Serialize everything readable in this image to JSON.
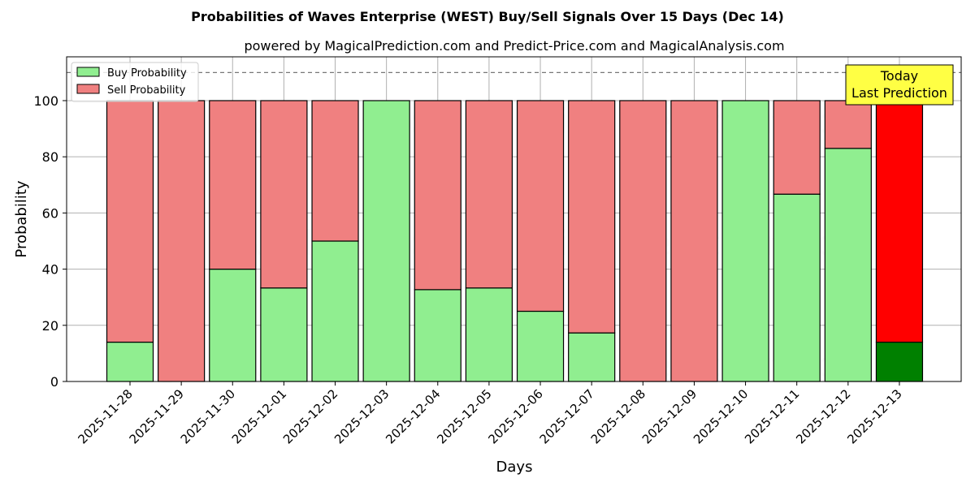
{
  "chart_data": {
    "type": "bar",
    "stacked": true,
    "title": "Probabilities of Waves Enterprise (WEST) Buy/Sell Signals Over 15 Days (Dec 14)",
    "subtitle": "powered by MagicalPrediction.com and Predict-Price.com and MagicalAnalysis.com",
    "xlabel": "Days",
    "ylabel": "Probability",
    "ylim": [
      0,
      115.6
    ],
    "yticks": [
      0,
      20,
      40,
      60,
      80,
      100
    ],
    "reference_line": 110,
    "grid": true,
    "legend_placement": "top-left",
    "categories": [
      "2025-11-28",
      "2025-11-29",
      "2025-11-30",
      "2025-12-01",
      "2025-12-02",
      "2025-12-03",
      "2025-12-04",
      "2025-12-05",
      "2025-12-06",
      "2025-12-07",
      "2025-12-08",
      "2025-12-09",
      "2025-12-10",
      "2025-12-11",
      "2025-12-12",
      "2025-12-13"
    ],
    "series": [
      {
        "name": "Buy Probability",
        "color": "#90ee90",
        "values": [
          14,
          0,
          40,
          33.3,
          50,
          100,
          32.7,
          33.3,
          25,
          17.3,
          0,
          0,
          100,
          66.7,
          83,
          14
        ]
      },
      {
        "name": "Sell Probability",
        "color": "#f08080",
        "values": [
          86,
          100,
          60,
          66.7,
          50,
          0,
          67.3,
          66.7,
          75,
          82.7,
          100,
          100,
          0,
          33.3,
          17,
          86
        ]
      }
    ],
    "highlight": {
      "index": 15,
      "buy_color": "#008000",
      "sell_color": "#ff0000"
    },
    "annotation": {
      "line1": "Today",
      "line2": "Last Prediction"
    },
    "watermarks": [
      "MagicalAnalysis.com",
      "MagicalPrediction.com"
    ]
  }
}
